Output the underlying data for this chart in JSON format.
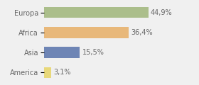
{
  "categories": [
    "Europa",
    "Africa",
    "Asia",
    "America"
  ],
  "values": [
    44.9,
    36.4,
    15.5,
    3.1
  ],
  "labels": [
    "44,9%",
    "36,4%",
    "15,5%",
    "3,1%"
  ],
  "bar_colors": [
    "#abbe8b",
    "#e8b87a",
    "#6e85b5",
    "#e8d87a"
  ],
  "background_color": "#f0f0f0",
  "xlim": [
    0,
    65
  ],
  "label_fontsize": 7.0,
  "category_fontsize": 7.0,
  "bar_height": 0.55
}
